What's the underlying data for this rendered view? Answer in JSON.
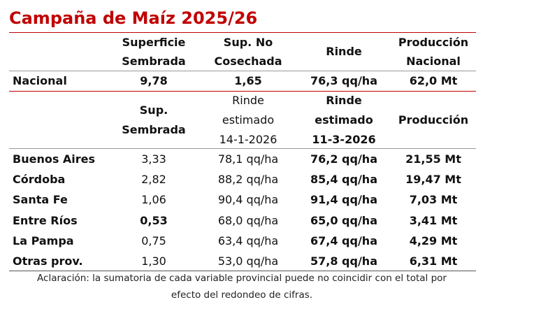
{
  "title": "Campaña de Maíz 2025/26",
  "national_table": {
    "headers": [
      [
        "Superficie",
        "Sembrada"
      ],
      [
        "Sup. No",
        "Cosechada"
      ],
      [
        "Rinde"
      ],
      [
        "Producción",
        "Nacional"
      ]
    ],
    "row": [
      "Nacional",
      "9,78",
      "1,65",
      "76,3 qq/ha",
      "62,0 Mt"
    ]
  },
  "provincial_table": {
    "headers": [
      [
        "Sup.",
        "Sembrada"
      ],
      [
        "Rinde",
        "estimado",
        "14-1-2026"
      ],
      [
        "Rinde",
        "estimado",
        "11-3-2026"
      ],
      [
        "Producción"
      ]
    ],
    "rows": [
      [
        "Buenos Aires",
        "3,33",
        "78,1 qq/ha",
        "76,2 qq/ha",
        "21,55 Mt"
      ],
      [
        "Córdoba",
        "2,82",
        "88,2 qq/ha",
        "85,4 qq/ha",
        "19,47 Mt"
      ],
      [
        "Santa Fe",
        "1,06",
        "90,4 qq/ha",
        "91,4 qq/ha",
        "7,03 Mt"
      ],
      [
        "Entre Ríos",
        "0,53",
        "68,0 qq/ha",
        "65,0 qq/ha",
        "3,41 Mt"
      ],
      [
        "La Pampa",
        "0,75",
        "63,4 qq/ha",
        "67,4 qq/ha",
        "4,29 Mt"
      ],
      [
        "Otras prov.",
        "1,30",
        "53,0 qq/ha",
        "57,8 qq/ha",
        "6,31 Mt"
      ]
    ]
  },
  "note": [
    "Aclaración: la sumatoria de cada variable provincial puede no coincidir con el total por",
    "efecto del redondeo de cifras."
  ]
}
